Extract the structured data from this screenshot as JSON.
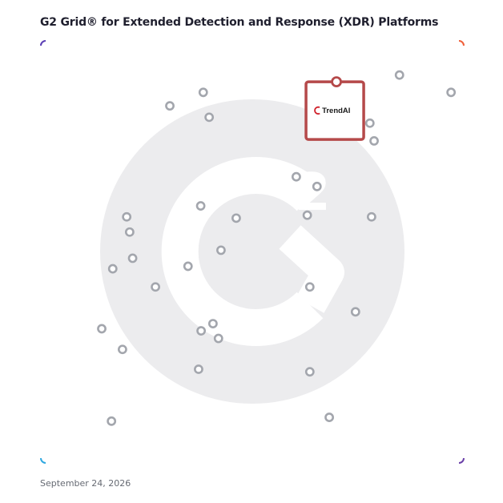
{
  "title": "G2 Grid® for Extended Detection and Response (XDR) Platforms",
  "date": "September 24, 2026",
  "highlight": {
    "logo_text": "TrendAI",
    "color": "#b5494a"
  },
  "colors": {
    "frame_top_left": "#5b3fb5",
    "frame_top_right": "#f0603a",
    "frame_bottom_left": "#2fa8e0",
    "frame_bottom_right": "#6a3fa8",
    "point": "#a3a6ad",
    "watermark": "#ececee"
  },
  "chart_data": {
    "type": "scatter",
    "xlim": [
      0,
      100
    ],
    "ylim": [
      0,
      100
    ],
    "grid": false,
    "quadrant_dividers": {
      "x": 50,
      "y": 50
    },
    "points": [
      {
        "x": 30.5,
        "y": 84.6
      },
      {
        "x": 38.4,
        "y": 87.8
      },
      {
        "x": 39.8,
        "y": 81.9
      },
      {
        "x": 84.8,
        "y": 91.9
      },
      {
        "x": 97.0,
        "y": 87.8
      },
      {
        "x": 77.8,
        "y": 80.5
      },
      {
        "x": 78.8,
        "y": 76.3
      },
      {
        "x": 60.4,
        "y": 67.8
      },
      {
        "x": 65.3,
        "y": 65.5
      },
      {
        "x": 37.8,
        "y": 60.9
      },
      {
        "x": 20.3,
        "y": 58.3
      },
      {
        "x": 46.2,
        "y": 58.0
      },
      {
        "x": 63.0,
        "y": 58.7
      },
      {
        "x": 78.2,
        "y": 58.3
      },
      {
        "x": 21.0,
        "y": 54.7
      },
      {
        "x": 42.6,
        "y": 50.4
      },
      {
        "x": 21.7,
        "y": 48.5
      },
      {
        "x": 34.8,
        "y": 46.6
      },
      {
        "x": 17.0,
        "y": 46.0
      },
      {
        "x": 27.1,
        "y": 41.7
      },
      {
        "x": 63.6,
        "y": 41.7
      },
      {
        "x": 74.4,
        "y": 35.8
      },
      {
        "x": 40.7,
        "y": 33.0
      },
      {
        "x": 14.4,
        "y": 31.8
      },
      {
        "x": 37.9,
        "y": 31.3
      },
      {
        "x": 42.0,
        "y": 29.5
      },
      {
        "x": 19.3,
        "y": 26.9
      },
      {
        "x": 37.3,
        "y": 22.2
      },
      {
        "x": 63.6,
        "y": 21.6
      },
      {
        "x": 68.2,
        "y": 10.8
      },
      {
        "x": 16.7,
        "y": 9.9
      }
    ],
    "highlighted": {
      "label": "TrendAI",
      "x": 69.9,
      "y": 90.3
    }
  }
}
